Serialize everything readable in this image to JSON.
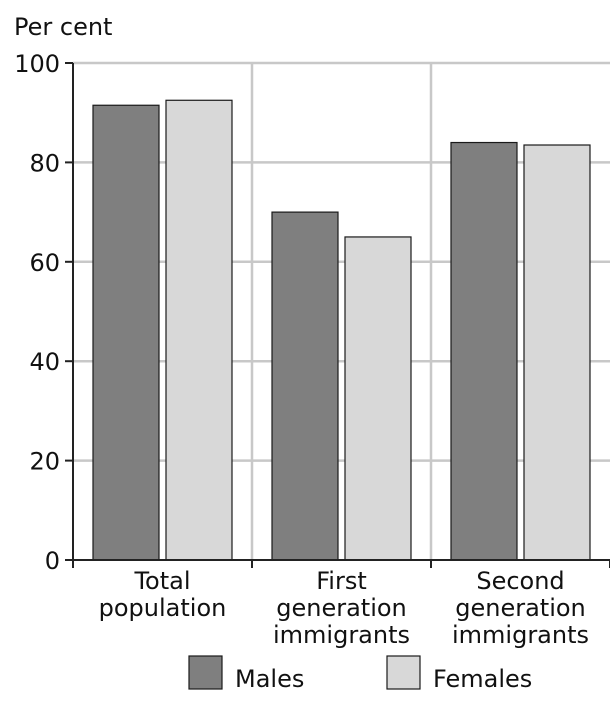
{
  "chart_data": {
    "type": "bar",
    "ylabel": "Per cent",
    "ylim": [
      0,
      100
    ],
    "yticks": [
      0,
      20,
      40,
      60,
      80,
      100
    ],
    "categories": [
      [
        "Total",
        "population"
      ],
      [
        "First",
        "generation",
        "immigrants"
      ],
      [
        "Second",
        "generation",
        "immigrants"
      ]
    ],
    "series": [
      {
        "name": "Males",
        "values": [
          91.5,
          70,
          84
        ],
        "color": "#7f7f7f"
      },
      {
        "name": "Females",
        "values": [
          92.5,
          65,
          83.5
        ],
        "color": "#d8d8d8"
      }
    ],
    "grid": true,
    "legend_position": "bottom-center"
  }
}
